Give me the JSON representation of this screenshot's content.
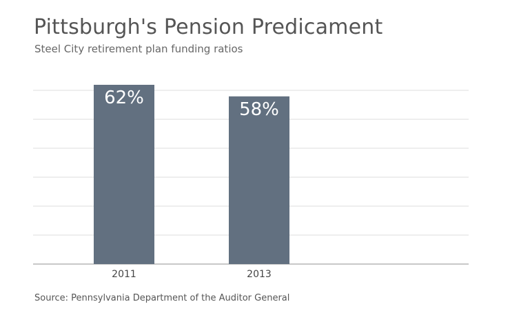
{
  "chart_data": {
    "type": "bar",
    "title": "Pittsburgh's Pension Predicament",
    "subtitle": "Steel City retirement plan funding ratios",
    "categories": [
      "2011",
      "2013"
    ],
    "values": [
      62,
      58
    ],
    "value_labels": [
      "62%",
      "58%"
    ],
    "unit": "%",
    "ylim": [
      0,
      62
    ],
    "grid": true,
    "bar_color": "#627080",
    "source": "Source: Pennsylvania Department of the Auditor General"
  }
}
